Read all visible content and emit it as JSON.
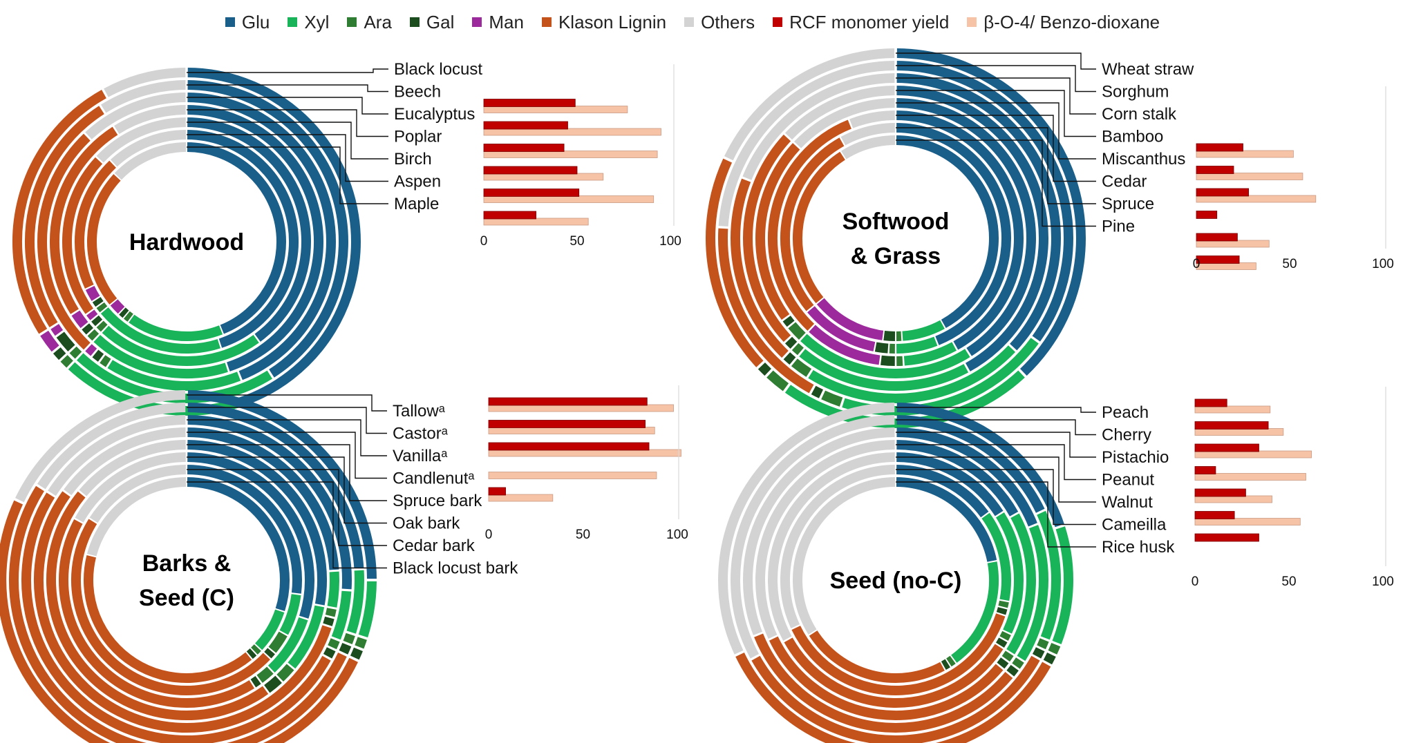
{
  "legend": [
    {
      "name": "Glu",
      "color": "#1a5f8a"
    },
    {
      "name": "Xyl",
      "color": "#19b35a"
    },
    {
      "name": "Ara",
      "color": "#2e7d32"
    },
    {
      "name": "Gal",
      "color": "#1b4d1e"
    },
    {
      "name": "Man",
      "color": "#9c2a9c"
    },
    {
      "name": "Klason Lignin",
      "color": "#c4521b"
    },
    {
      "name": "Others",
      "color": "#d3d3d3"
    },
    {
      "name": "RCF monomer yield",
      "color": "#c00000"
    },
    {
      "name": "β-O-4/ Benzo-dioxane",
      "color": "#f6c3a6"
    }
  ],
  "chart_data": [
    {
      "type": "bar",
      "panel": "Hardwood",
      "center_label": [
        "Hardwood"
      ],
      "categories": [
        "Black locust",
        "Beech",
        "Eucalyptus",
        "Poplar",
        "Birch",
        "Aspen",
        "Maple"
      ],
      "composition_order": [
        "Glu",
        "Xyl",
        "Ara",
        "Gal",
        "Man",
        "Klason Lignin",
        "Others"
      ],
      "composition": [
        [
          45,
          17,
          1,
          1,
          2,
          26,
          8
        ],
        [
          41,
          21,
          1,
          2,
          1,
          25,
          9
        ],
        [
          44,
          15,
          1,
          1,
          1,
          26,
          12
        ],
        [
          45,
          17,
          1,
          1,
          2,
          25,
          9
        ],
        [
          40,
          22,
          1,
          1,
          1,
          22,
          13
        ],
        [
          45,
          19,
          1,
          1,
          2,
          20,
          12
        ],
        [
          44,
          16,
          1,
          1,
          2,
          23,
          13
        ]
      ],
      "series": [
        {
          "name": "RCF monomer yield",
          "values": [
            null,
            49,
            45,
            43,
            50,
            51,
            28
          ]
        },
        {
          "name": "β-O-4/ Benzo-dioxane",
          "values": [
            null,
            77,
            95,
            93,
            64,
            91,
            56
          ]
        }
      ],
      "xlim": [
        0,
        100
      ],
      "xticks": [
        0,
        50,
        100
      ]
    },
    {
      "type": "bar",
      "panel": "Softwood & Grass",
      "center_label": [
        "Softwood",
        "& Grass"
      ],
      "categories": [
        "Wheat straw",
        "Sorghum",
        "Corn stalk",
        "Bamboo",
        "Miscanthus",
        "Cedar",
        "Spruce",
        "Pine"
      ],
      "composition_order": [
        "Glu",
        "Xyl",
        "Ara",
        "Gal",
        "Man",
        "Klason Lignin",
        "Others"
      ],
      "composition": [
        [
          38,
          22,
          2,
          1,
          0,
          19,
          18
        ],
        [
          35,
          20,
          2,
          1,
          0,
          18,
          24
        ],
        [
          37,
          22,
          2,
          1,
          0,
          19,
          19
        ],
        [
          42,
          19,
          1,
          1,
          0,
          24,
          13
        ],
        [
          41,
          21,
          2,
          1,
          0,
          22,
          13
        ],
        [
          42,
          7,
          1,
          2,
          10,
          32,
          6
        ],
        [
          44,
          6,
          1,
          2,
          11,
          28,
          8
        ],
        [
          42,
          7,
          1,
          2,
          12,
          27,
          9
        ]
      ],
      "series": [
        {
          "name": "RCF monomer yield",
          "values": [
            null,
            null,
            25,
            20,
            28,
            11,
            22,
            23
          ]
        },
        {
          "name": "β-O-4/ Benzo-dioxane",
          "values": [
            null,
            null,
            52,
            57,
            64,
            null,
            39,
            32
          ]
        }
      ],
      "xlim": [
        0,
        100
      ],
      "xticks": [
        0,
        50,
        100
      ]
    },
    {
      "type": "bar",
      "panel": "Barks & Seed (C)",
      "center_label": [
        "Barks &",
        "Seed (C)"
      ],
      "categories": [
        "Tallowᵃ",
        "Castorᵃ",
        "Vanillaᵃ",
        "Candlenutᵃ",
        "Spruce bark",
        "Oak bark",
        "Cedar bark",
        "Black locust bark"
      ],
      "composition_order": [
        "Glu",
        "Xyl",
        "Ara",
        "Gal",
        "Man",
        "Klason Lignin",
        "Others"
      ],
      "composition": [
        [
          25,
          5,
          1,
          1,
          0,
          50,
          18
        ],
        [
          24,
          6,
          1,
          1,
          0,
          52,
          16
        ],
        [
          26,
          5,
          1,
          1,
          0,
          51,
          16
        ],
        [
          24,
          4,
          1,
          1,
          0,
          55,
          15
        ],
        [
          28,
          8,
          2,
          2,
          0,
          46,
          14
        ],
        [
          30,
          8,
          2,
          1,
          0,
          42,
          17
        ],
        [
          27,
          6,
          3,
          1,
          0,
          47,
          16
        ],
        [
          30,
          7,
          1,
          1,
          0,
          40,
          21
        ]
      ],
      "series": [
        {
          "name": "RCF monomer yield",
          "values": [
            84,
            83,
            85,
            null,
            9,
            null,
            null,
            null
          ]
        },
        {
          "name": "β-O-4/ Benzo-dioxane",
          "values": [
            98,
            88,
            102,
            89,
            34,
            null,
            null,
            null
          ]
        }
      ],
      "xlim": [
        0,
        100
      ],
      "xticks": [
        0,
        50,
        100
      ]
    },
    {
      "type": "bar",
      "panel": "Seed (no-C)",
      "center_label": [
        "Seed (no-C)"
      ],
      "categories": [
        "Peach",
        "Cherry",
        "Pistachio",
        "Peanut",
        "Walnut",
        "Cameilla",
        "Rice husk"
      ],
      "composition_order": [
        "Glu",
        "Xyl",
        "Ara",
        "Gal",
        "Man",
        "Klason Lignin",
        "Others"
      ],
      "composition": [
        [
          20,
          11,
          1,
          1,
          0,
          35,
          32
        ],
        [
          18,
          13,
          1,
          1,
          0,
          34,
          33
        ],
        [
          19,
          15,
          1,
          1,
          0,
          33,
          31
        ],
        [
          17,
          17,
          1,
          1,
          0,
          32,
          32
        ],
        [
          16,
          16,
          1,
          1,
          0,
          33,
          33
        ],
        [
          15,
          13,
          1,
          1,
          0,
          38,
          32
        ],
        [
          22,
          18,
          1,
          1,
          0,
          24,
          34
        ]
      ],
      "series": [
        {
          "name": "RCF monomer yield",
          "values": [
            17,
            39,
            34,
            11,
            27,
            21,
            34
          ]
        },
        {
          "name": "β-O-4/ Benzo-dioxane",
          "values": [
            40,
            47,
            62,
            59,
            41,
            56,
            null
          ]
        }
      ],
      "xlim": [
        0,
        100
      ],
      "xticks": [
        0,
        50,
        100
      ]
    }
  ]
}
